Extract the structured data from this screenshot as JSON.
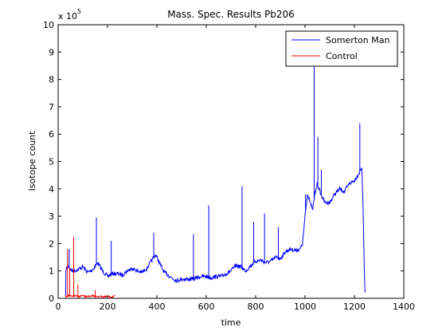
{
  "chart_data": {
    "type": "line",
    "title": "Mass. Spec. Results Pb206",
    "xlabel": "time",
    "ylabel": "Isotope count",
    "y_multiplier": "x 10",
    "y_multiplier_exp": "5",
    "xlim": [
      0,
      1400
    ],
    "ylim": [
      0,
      10
    ],
    "x_ticks": [
      0,
      200,
      400,
      600,
      800,
      1000,
      1200,
      1400
    ],
    "y_ticks": [
      0,
      1,
      2,
      3,
      4,
      5,
      6,
      7,
      8,
      9,
      10
    ],
    "x_tick_labels": [
      "0",
      "200",
      "400",
      "600",
      "800",
      "1000",
      "1200",
      "1400"
    ],
    "y_tick_labels": [
      "0",
      "1",
      "2",
      "3",
      "4",
      "5",
      "6",
      "7",
      "8",
      "9",
      "10"
    ],
    "grid": false,
    "legend_position": "top-right",
    "series": [
      {
        "name": "Somerton Man",
        "color": "#0000ff",
        "x": [
          30,
          40,
          50,
          60,
          80,
          100,
          120,
          140,
          160,
          180,
          200,
          220,
          240,
          260,
          280,
          300,
          320,
          340,
          360,
          380,
          395,
          410,
          430,
          460,
          480,
          500,
          520,
          540,
          560,
          580,
          600,
          620,
          640,
          660,
          680,
          700,
          720,
          740,
          760,
          780,
          800,
          820,
          840,
          860,
          880,
          900,
          920,
          940,
          960,
          980,
          990,
          1000,
          1010,
          1020,
          1030,
          1040,
          1050,
          1060,
          1080,
          1100,
          1120,
          1140,
          1160,
          1180,
          1200,
          1220,
          1230,
          1236,
          1240,
          1244
        ],
        "y": [
          1.0,
          1.2,
          1.05,
          1.0,
          1.05,
          1.15,
          0.95,
          1.05,
          1.3,
          1.0,
          0.8,
          0.9,
          0.9,
          0.85,
          1.0,
          1.1,
          1.0,
          0.95,
          1.1,
          1.4,
          1.6,
          1.3,
          0.95,
          0.75,
          0.65,
          0.7,
          0.7,
          0.7,
          0.75,
          0.8,
          0.8,
          0.75,
          0.8,
          0.8,
          0.9,
          1.0,
          1.2,
          1.15,
          1.0,
          1.2,
          1.35,
          1.4,
          1.3,
          1.35,
          1.5,
          1.45,
          1.7,
          1.8,
          1.75,
          1.8,
          2.0,
          3.0,
          3.8,
          3.6,
          3.2,
          3.8,
          4.2,
          3.9,
          3.5,
          3.5,
          3.8,
          4.0,
          3.9,
          4.2,
          4.3,
          4.6,
          4.8,
          3.0,
          1.0,
          0.0
        ]
      },
      {
        "name": "Control",
        "color": "#ff0000",
        "x": [
          30,
          40,
          50,
          60,
          70,
          80,
          90,
          100,
          110,
          120,
          130,
          140,
          150,
          160,
          170,
          180,
          190,
          200,
          210,
          220,
          230
        ],
        "y": [
          0.05,
          0.1,
          0.08,
          0.06,
          0.1,
          0.05,
          0.08,
          0.1,
          0.06,
          0.08,
          0.05,
          0.1,
          0.07,
          0.05,
          0.08,
          0.06,
          0.05,
          0.07,
          0.05,
          0.06,
          0.08
        ]
      }
    ],
    "spikes": [
      {
        "series": "Somerton Man",
        "x": 45,
        "y": 1.8
      },
      {
        "series": "Somerton Man",
        "x": 155,
        "y": 2.95
      },
      {
        "series": "Somerton Man",
        "x": 215,
        "y": 2.1
      },
      {
        "series": "Somerton Man",
        "x": 387,
        "y": 2.4
      },
      {
        "series": "Somerton Man",
        "x": 548,
        "y": 2.35
      },
      {
        "series": "Somerton Man",
        "x": 610,
        "y": 3.4
      },
      {
        "series": "Somerton Man",
        "x": 745,
        "y": 4.1
      },
      {
        "series": "Somerton Man",
        "x": 792,
        "y": 2.8
      },
      {
        "series": "Somerton Man",
        "x": 836,
        "y": 3.1
      },
      {
        "series": "Somerton Man",
        "x": 892,
        "y": 2.6
      },
      {
        "series": "Somerton Man",
        "x": 1002,
        "y": 3.8
      },
      {
        "series": "Somerton Man",
        "x": 1037,
        "y": 8.7
      },
      {
        "series": "Somerton Man",
        "x": 1052,
        "y": 5.9
      },
      {
        "series": "Somerton Man",
        "x": 1066,
        "y": 4.7
      },
      {
        "series": "Somerton Man",
        "x": 1222,
        "y": 6.4
      },
      {
        "series": "Control",
        "x": 38,
        "y": 1.8
      },
      {
        "series": "Control",
        "x": 47,
        "y": 1.1
      },
      {
        "series": "Control",
        "x": 63,
        "y": 2.25
      },
      {
        "series": "Control",
        "x": 80,
        "y": 0.5
      },
      {
        "series": "Control",
        "x": 150,
        "y": 0.3
      }
    ]
  }
}
